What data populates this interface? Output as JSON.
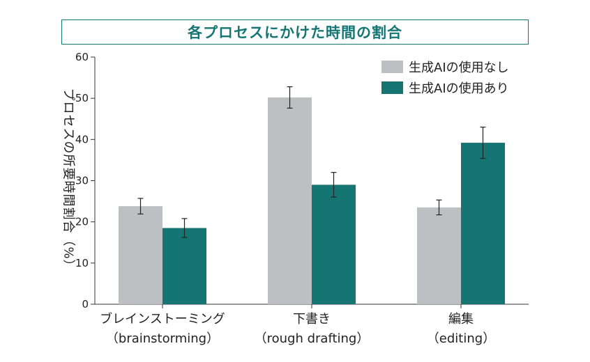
{
  "chart_data": {
    "type": "bar",
    "title": "各プロセスにかけた時間の割合",
    "ylabel": "プロセスの所要時間割合（%）",
    "ylim": [
      0,
      60
    ],
    "yticks": [
      0,
      10,
      20,
      30,
      40,
      50,
      60
    ],
    "categories": [
      {
        "label": "ブレインストーミング",
        "sublabel": "（brainstorming）"
      },
      {
        "label": "下書き",
        "sublabel": "（rough drafting）"
      },
      {
        "label": "編集",
        "sublabel": "（editing）"
      }
    ],
    "series": [
      {
        "name": "生成AIの使用なし",
        "color": "#bdbfc3",
        "values": [
          23.8,
          50.2,
          23.5
        ],
        "errors": [
          1.9,
          2.6,
          1.8
        ]
      },
      {
        "name": "生成AIの使用あり",
        "color": "#157572",
        "values": [
          18.5,
          29.0,
          39.2
        ],
        "errors": [
          2.3,
          3.0,
          3.8
        ]
      }
    ],
    "legend": "top-right",
    "grid": false
  }
}
